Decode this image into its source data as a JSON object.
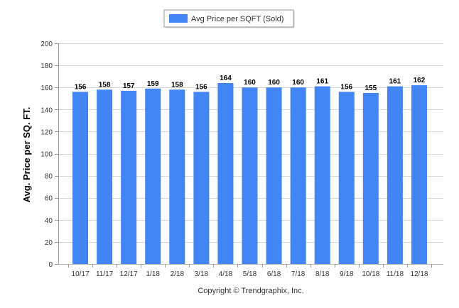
{
  "chart_data": {
    "type": "bar",
    "categories": [
      "10/17",
      "11/17",
      "12/17",
      "1/18",
      "2/18",
      "3/18",
      "4/18",
      "5/18",
      "6/18",
      "7/18",
      "8/18",
      "9/18",
      "10/18",
      "11/18",
      "12/18"
    ],
    "series": [
      {
        "name": "Avg Price per SQFT (Sold)",
        "values": [
          156,
          158,
          157,
          159,
          158,
          156,
          164,
          160,
          160,
          160,
          161,
          156,
          155,
          161,
          162
        ],
        "color": "#4285f4"
      }
    ],
    "data_labels": [
      "156",
      "158",
      "157",
      "159",
      "158",
      "156",
      "164",
      "160",
      "160",
      "160",
      "161",
      "156",
      "155",
      "161",
      "162"
    ],
    "ylabel": "Avg. Price per SQ. FT.",
    "xlabel": "",
    "ylim": [
      0,
      200
    ],
    "yticks": [
      0,
      20,
      40,
      60,
      80,
      100,
      120,
      140,
      160,
      180,
      200
    ],
    "ytick_labels": [
      "0",
      "20",
      "40",
      "60",
      "80",
      "100",
      "120",
      "140",
      "160",
      "180",
      "200"
    ],
    "grid": true,
    "legend_position": "top-center"
  },
  "footer": {
    "copyright": "Copyright © Trendgraphix, Inc."
  }
}
